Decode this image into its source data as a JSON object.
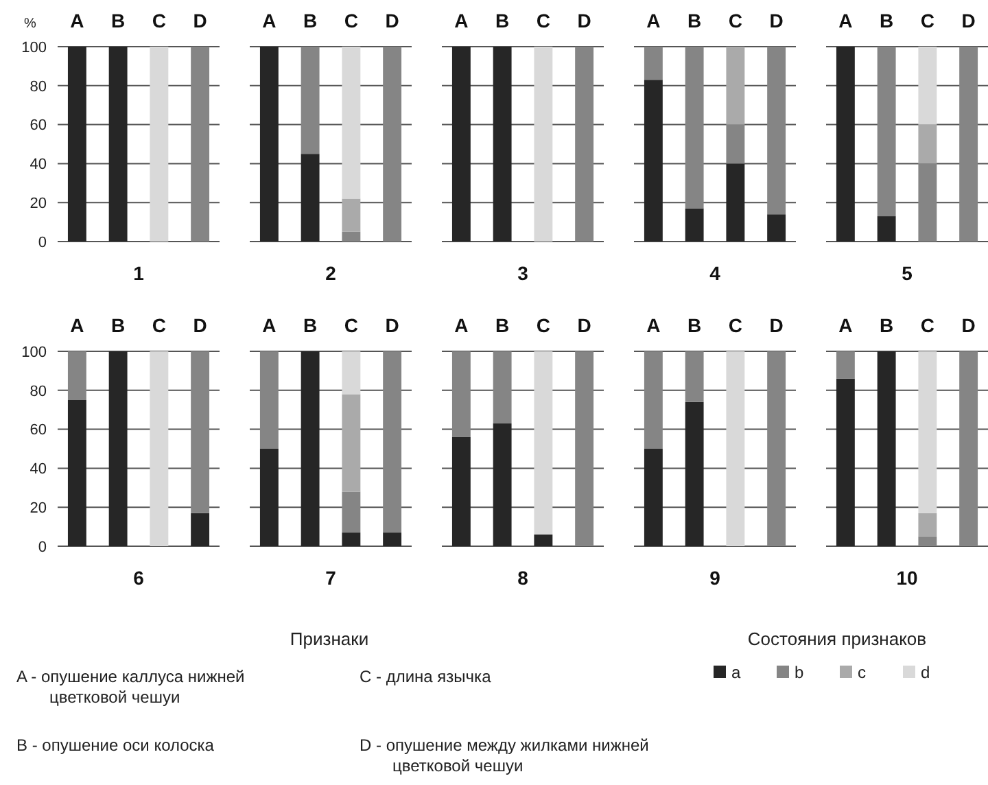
{
  "chart_data": [
    {
      "type": "bar",
      "stacked": true,
      "categories": [
        "A",
        "B",
        "C",
        "D"
      ],
      "ylabel": "%",
      "xlabel": "1",
      "ylim": [
        0,
        100
      ],
      "yticks": [
        0,
        20,
        40,
        60,
        80,
        100
      ],
      "grid": "y",
      "legend": "bottom right",
      "legend_title": "Состояния признаков",
      "series": [
        {
          "name": "a",
          "color": "#262626",
          "values": [
            100,
            100,
            0,
            0
          ]
        },
        {
          "name": "b",
          "color": "#858585",
          "values": [
            0,
            0,
            0,
            100
          ]
        },
        {
          "name": "c",
          "color": "#aaaaaa",
          "values": [
            0,
            0,
            0,
            0
          ]
        },
        {
          "name": "d",
          "color": "#d9d9d9",
          "values": [
            0,
            0,
            100,
            0
          ]
        }
      ]
    },
    {
      "type": "bar",
      "stacked": true,
      "categories": [
        "A",
        "B",
        "C",
        "D"
      ],
      "xlabel": "2",
      "ylim": [
        0,
        100
      ],
      "yticks": [
        0,
        20,
        40,
        60,
        80,
        100
      ],
      "grid": "y",
      "tick_labels": "x",
      "series": [
        {
          "color": "#262626",
          "values": [
            100,
            45,
            0,
            0
          ]
        },
        {
          "color": "#858585",
          "values": [
            0,
            55,
            5,
            100
          ]
        },
        {
          "color": "#aaaaaa",
          "values": [
            0,
            0,
            17,
            0
          ]
        },
        {
          "color": "#d9d9d9",
          "values": [
            0,
            0,
            78,
            0
          ]
        }
      ]
    },
    {
      "type": "bar",
      "stacked": true,
      "categories": [
        "A",
        "B",
        "C",
        "D"
      ],
      "xlabel": "3",
      "ylim": [
        0,
        100
      ],
      "yticks": [
        0,
        20,
        40,
        60,
        80,
        100
      ],
      "grid": "y",
      "tick_labels": "x",
      "series": [
        {
          "color": "#262626",
          "values": [
            100,
            100,
            0,
            0
          ]
        },
        {
          "color": "#858585",
          "values": [
            0,
            0,
            0,
            100
          ]
        },
        {
          "color": "#aaaaaa",
          "values": [
            0,
            0,
            0,
            0
          ]
        },
        {
          "color": "#d9d9d9",
          "values": [
            0,
            0,
            100,
            0
          ]
        }
      ]
    },
    {
      "type": "bar",
      "stacked": true,
      "categories": [
        "A",
        "B",
        "C",
        "D"
      ],
      "xlabel": "4",
      "ylim": [
        0,
        100
      ],
      "yticks": [
        0,
        20,
        40,
        60,
        80,
        100
      ],
      "grid": "y",
      "tick_labels": "x",
      "series": [
        {
          "color": "#262626",
          "values": [
            83,
            17,
            40,
            14
          ]
        },
        {
          "color": "#858585",
          "values": [
            17,
            83,
            20,
            86
          ]
        },
        {
          "color": "#aaaaaa",
          "values": [
            0,
            0,
            40,
            0
          ]
        },
        {
          "color": "#d9d9d9",
          "values": [
            0,
            0,
            0,
            0
          ]
        }
      ]
    },
    {
      "type": "bar",
      "stacked": true,
      "categories": [
        "A",
        "B",
        "C",
        "D"
      ],
      "xlabel": "5",
      "ylim": [
        0,
        100
      ],
      "yticks": [
        0,
        20,
        40,
        60,
        80,
        100
      ],
      "grid": "y",
      "tick_labels": "x",
      "series": [
        {
          "color": "#262626",
          "values": [
            100,
            13,
            0,
            0
          ]
        },
        {
          "color": "#858585",
          "values": [
            0,
            87,
            40,
            100
          ]
        },
        {
          "color": "#aaaaaa",
          "values": [
            0,
            0,
            20,
            0
          ]
        },
        {
          "color": "#d9d9d9",
          "values": [
            0,
            0,
            40,
            0
          ]
        }
      ]
    },
    {
      "type": "bar",
      "stacked": true,
      "categories": [
        "A",
        "B",
        "C",
        "D"
      ],
      "xlabel": "6",
      "ylim": [
        0,
        100
      ],
      "yticks": [
        0,
        20,
        40,
        60,
        80,
        100
      ],
      "grid": "y",
      "series": [
        {
          "color": "#262626",
          "values": [
            75,
            100,
            0,
            17
          ]
        },
        {
          "color": "#858585",
          "values": [
            25,
            0,
            0,
            83
          ]
        },
        {
          "color": "#aaaaaa",
          "values": [
            0,
            0,
            0,
            0
          ]
        },
        {
          "color": "#d9d9d9",
          "values": [
            0,
            0,
            100,
            0
          ]
        }
      ]
    },
    {
      "type": "bar",
      "stacked": true,
      "categories": [
        "A",
        "B",
        "C",
        "D"
      ],
      "xlabel": "7",
      "ylim": [
        0,
        100
      ],
      "yticks": [
        0,
        20,
        40,
        60,
        80,
        100
      ],
      "grid": "y",
      "tick_labels": "x",
      "series": [
        {
          "color": "#262626",
          "values": [
            50,
            100,
            7,
            7
          ]
        },
        {
          "color": "#858585",
          "values": [
            50,
            0,
            21,
            93
          ]
        },
        {
          "color": "#aaaaaa",
          "values": [
            0,
            0,
            50,
            0
          ]
        },
        {
          "color": "#d9d9d9",
          "values": [
            0,
            0,
            22,
            0
          ]
        }
      ]
    },
    {
      "type": "bar",
      "stacked": true,
      "categories": [
        "A",
        "B",
        "C",
        "D"
      ],
      "xlabel": "8",
      "ylim": [
        0,
        100
      ],
      "yticks": [
        0,
        20,
        40,
        60,
        80,
        100
      ],
      "grid": "y",
      "tick_labels": "x",
      "series": [
        {
          "color": "#262626",
          "values": [
            56,
            63,
            6,
            0
          ]
        },
        {
          "color": "#858585",
          "values": [
            44,
            37,
            0,
            100
          ]
        },
        {
          "color": "#aaaaaa",
          "values": [
            0,
            0,
            0,
            0
          ]
        },
        {
          "color": "#d9d9d9",
          "values": [
            0,
            0,
            94,
            0
          ]
        }
      ]
    },
    {
      "type": "bar",
      "stacked": true,
      "categories": [
        "A",
        "B",
        "C",
        "D"
      ],
      "xlabel": "9",
      "ylim": [
        0,
        100
      ],
      "yticks": [
        0,
        20,
        40,
        60,
        80,
        100
      ],
      "grid": "y",
      "tick_labels": "x",
      "series": [
        {
          "color": "#262626",
          "values": [
            50,
            74,
            0,
            0
          ]
        },
        {
          "color": "#858585",
          "values": [
            50,
            26,
            0,
            100
          ]
        },
        {
          "color": "#aaaaaa",
          "values": [
            0,
            0,
            0,
            0
          ]
        },
        {
          "color": "#d9d9d9",
          "values": [
            0,
            0,
            100,
            0
          ]
        }
      ]
    },
    {
      "type": "bar",
      "stacked": true,
      "categories": [
        "A",
        "B",
        "C",
        "D"
      ],
      "xlabel": "10",
      "ylim": [
        0,
        100
      ],
      "yticks": [
        0,
        20,
        40,
        60,
        80,
        100
      ],
      "grid": "y",
      "tick_labels": "x",
      "series": [
        {
          "color": "#262626",
          "values": [
            86,
            100,
            0,
            0
          ]
        },
        {
          "color": "#858585",
          "values": [
            14,
            0,
            5,
            100
          ]
        },
        {
          "color": "#aaaaaa",
          "values": [
            0,
            0,
            12,
            0
          ]
        },
        {
          "color": "#d9d9d9",
          "values": [
            0,
            0,
            83,
            0
          ]
        }
      ]
    },
    {
      "type": "other",
      "title": "Признаки",
      "annotations": [
        "A - опушение каллуса нижней цветковой чешуи",
        "C - длина язычка",
        "B - опушение оси колоска",
        "D - опушение между жилками нижней цветковой чешуи"
      ]
    }
  ]
}
